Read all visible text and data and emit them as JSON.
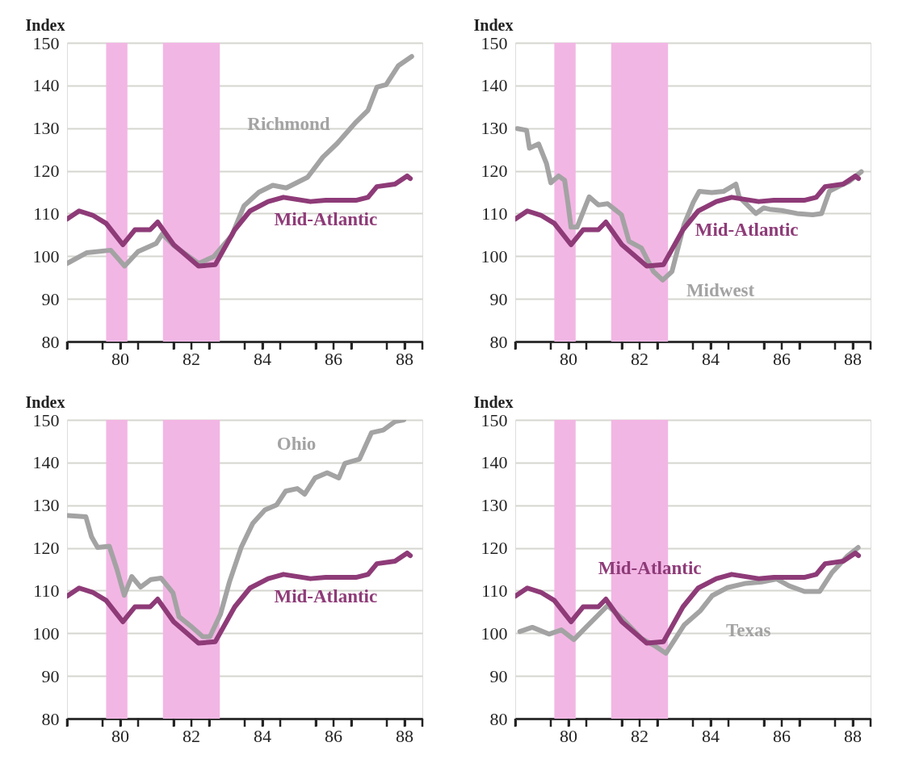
{
  "chart_data": [
    {
      "type": "line",
      "ylabel": "Index",
      "xlim": [
        78.5,
        88.5
      ],
      "ylim": [
        80,
        150
      ],
      "yticks": [
        80,
        90,
        100,
        110,
        120,
        130,
        140,
        150
      ],
      "xticks": [
        {
          "value": 78.5,
          "label": null
        },
        {
          "value": 79.5,
          "label": null
        },
        80,
        {
          "value": 80.5,
          "label": null
        },
        {
          "value": 81.5,
          "label": null
        },
        82,
        {
          "value": 82.5,
          "label": null
        },
        {
          "value": 83.5,
          "label": null
        },
        84,
        {
          "value": 84.5,
          "label": null
        },
        {
          "value": 85.5,
          "label": null
        },
        86,
        {
          "value": 86.5,
          "label": null
        },
        {
          "value": 87.5,
          "label": null
        },
        88,
        {
          "value": 88.5,
          "label": null
        }
      ],
      "grid": "y",
      "bands": [
        {
          "axis": "x",
          "from": 79.6,
          "to": 80.2,
          "color": "#f2b6e4"
        },
        {
          "axis": "x",
          "from": 81.2,
          "to": 82.8,
          "color": "#f2b6e4"
        }
      ],
      "series": [
        {
          "name": "Richmond",
          "color": "#a3a3a3",
          "x": [
            78.5,
            79.05,
            79.73,
            80.12,
            80.5,
            81.01,
            81.18,
            81.52,
            82.2,
            82.63,
            83.14,
            83.48,
            83.9,
            84.29,
            84.67,
            85.27,
            85.7,
            86.1,
            86.63,
            86.97,
            87.22,
            87.48,
            87.82,
            88.2
          ],
          "values": [
            98.3,
            100.8,
            101.4,
            97.7,
            101.1,
            103.0,
            105.2,
            102.4,
            98.3,
            99.9,
            104.9,
            111.8,
            115.0,
            116.6,
            116.0,
            118.5,
            123.2,
            126.4,
            131.4,
            134.2,
            139.6,
            140.2,
            144.6,
            146.8
          ]
        },
        {
          "name": "Mid-Atlantic",
          "color": "#8e3b78",
          "x": [
            78.5,
            78.84,
            79.22,
            79.6,
            80.07,
            80.41,
            80.84,
            81.05,
            81.5,
            82.2,
            82.67,
            83.22,
            83.65,
            84.16,
            84.59,
            85.35,
            85.78,
            86.63,
            86.97,
            87.22,
            87.73,
            88.07,
            88.16
          ],
          "values": [
            108.7,
            110.6,
            109.6,
            107.7,
            102.7,
            106.2,
            106.2,
            108.0,
            102.7,
            97.7,
            98.0,
            106.2,
            110.6,
            112.8,
            113.8,
            112.8,
            113.1,
            113.1,
            113.8,
            116.3,
            116.9,
            118.8,
            118.2
          ]
        }
      ]
    },
    {
      "type": "line",
      "ylabel": "Index",
      "xlim": [
        78.5,
        88.5
      ],
      "ylim": [
        80,
        150
      ],
      "yticks": [
        80,
        90,
        100,
        110,
        120,
        130,
        140,
        150
      ],
      "xticks": [
        {
          "value": 78.5,
          "label": null
        },
        {
          "value": 79.5,
          "label": null
        },
        80,
        {
          "value": 80.5,
          "label": null
        },
        {
          "value": 81.5,
          "label": null
        },
        82,
        {
          "value": 82.5,
          "label": null
        },
        {
          "value": 83.5,
          "label": null
        },
        84,
        {
          "value": 84.5,
          "label": null
        },
        {
          "value": 85.5,
          "label": null
        },
        86,
        {
          "value": 86.5,
          "label": null
        },
        {
          "value": 87.5,
          "label": null
        },
        88,
        {
          "value": 88.5,
          "label": null
        }
      ],
      "grid": "y",
      "bands": [
        {
          "axis": "x",
          "from": 79.6,
          "to": 80.2,
          "color": "#f2b6e4"
        },
        {
          "axis": "x",
          "from": 81.2,
          "to": 82.8,
          "color": "#f2b6e4"
        }
      ],
      "series": [
        {
          "name": "Midwest",
          "color": "#a3a3a3",
          "x": [
            78.56,
            78.82,
            78.9,
            79.16,
            79.38,
            79.5,
            79.72,
            79.89,
            79.98,
            80.07,
            80.24,
            80.58,
            80.84,
            81.1,
            81.49,
            81.7,
            82.05,
            82.39,
            82.65,
            82.91,
            83.25,
            83.51,
            83.68,
            84.03,
            84.37,
            84.71,
            84.8,
            85.27,
            85.49,
            85.66,
            86.0,
            86.43,
            86.87,
            87.12,
            87.34,
            87.64,
            87.9,
            88.24
          ],
          "values": [
            129.9,
            129.5,
            125.3,
            126.3,
            121.7,
            117.2,
            118.8,
            117.8,
            112.6,
            106.8,
            106.8,
            113.9,
            112.0,
            112.3,
            109.7,
            103.5,
            101.9,
            96.4,
            94.4,
            96.4,
            107.4,
            112.6,
            115.2,
            114.9,
            115.2,
            116.9,
            113.9,
            110.0,
            111.3,
            111.0,
            110.7,
            110.0,
            109.7,
            110.0,
            115.2,
            116.5,
            117.5,
            119.8
          ]
        },
        {
          "name": "Mid-Atlantic",
          "color": "#8e3b78",
          "x": [
            78.5,
            78.84,
            79.22,
            79.6,
            80.07,
            80.41,
            80.84,
            81.05,
            81.5,
            82.2,
            82.67,
            83.22,
            83.65,
            84.16,
            84.59,
            85.35,
            85.78,
            86.63,
            86.97,
            87.22,
            87.73,
            88.07,
            88.16
          ],
          "values": [
            108.7,
            110.6,
            109.6,
            107.7,
            102.7,
            106.2,
            106.2,
            108.0,
            102.7,
            97.7,
            98.0,
            106.2,
            110.6,
            112.8,
            113.8,
            112.8,
            113.1,
            113.1,
            113.8,
            116.3,
            116.9,
            118.8,
            118.2
          ]
        }
      ]
    },
    {
      "type": "line",
      "ylabel": "Index",
      "xlim": [
        78.5,
        88.5
      ],
      "ylim": [
        80,
        150
      ],
      "yticks": [
        80,
        90,
        100,
        110,
        120,
        130,
        140,
        150
      ],
      "xticks": [
        {
          "value": 78.5,
          "label": null
        },
        {
          "value": 79.5,
          "label": null
        },
        80,
        {
          "value": 80.5,
          "label": null
        },
        {
          "value": 81.5,
          "label": null
        },
        82,
        {
          "value": 82.5,
          "label": null
        },
        {
          "value": 83.5,
          "label": null
        },
        84,
        {
          "value": 84.5,
          "label": null
        },
        {
          "value": 85.5,
          "label": null
        },
        86,
        {
          "value": 86.5,
          "label": null
        },
        {
          "value": 87.5,
          "label": null
        },
        88,
        {
          "value": 88.5,
          "label": null
        }
      ],
      "grid": "y",
      "bands": [
        {
          "axis": "x",
          "from": 79.6,
          "to": 80.2,
          "color": "#f2b6e4"
        },
        {
          "axis": "x",
          "from": 81.2,
          "to": 82.8,
          "color": "#f2b6e4"
        }
      ],
      "series": [
        {
          "name": "Ohio",
          "color": "#a3a3a3",
          "x": [
            78.53,
            79.03,
            79.19,
            79.36,
            79.69,
            79.9,
            80.11,
            80.32,
            80.57,
            80.86,
            81.15,
            81.48,
            81.65,
            81.98,
            82.32,
            82.52,
            82.82,
            83.07,
            83.4,
            83.73,
            84.07,
            84.4,
            84.65,
            84.98,
            85.19,
            85.48,
            85.82,
            86.15,
            86.32,
            86.73,
            87.07,
            87.4,
            87.73,
            87.98
          ],
          "values": [
            127.6,
            127.3,
            122.6,
            120.1,
            120.4,
            115.1,
            108.9,
            113.3,
            110.8,
            112.6,
            112.9,
            109.5,
            103.9,
            101.7,
            99.2,
            99.2,
            104.5,
            112.0,
            120.1,
            125.8,
            128.9,
            130.1,
            133.3,
            133.9,
            132.6,
            136.4,
            137.6,
            136.4,
            139.8,
            140.8,
            147.0,
            147.6,
            149.6,
            150.0
          ]
        },
        {
          "name": "Mid-Atlantic",
          "color": "#8e3b78",
          "x": [
            78.5,
            78.84,
            79.22,
            79.6,
            80.07,
            80.41,
            80.84,
            81.05,
            81.5,
            82.2,
            82.67,
            83.22,
            83.65,
            84.16,
            84.59,
            85.35,
            85.78,
            86.63,
            86.97,
            87.22,
            87.73,
            88.07,
            88.16
          ],
          "values": [
            108.7,
            110.6,
            109.6,
            107.7,
            102.7,
            106.2,
            106.2,
            108.0,
            102.7,
            97.7,
            98.0,
            106.2,
            110.6,
            112.8,
            113.8,
            112.8,
            113.1,
            113.1,
            113.8,
            116.3,
            116.9,
            118.8,
            118.2
          ]
        }
      ]
    },
    {
      "type": "line",
      "ylabel": "Index",
      "xlim": [
        78.5,
        88.5
      ],
      "ylim": [
        80,
        150
      ],
      "yticks": [
        80,
        90,
        100,
        110,
        120,
        130,
        140,
        150
      ],
      "xticks": [
        {
          "value": 78.5,
          "label": null
        },
        {
          "value": 79.5,
          "label": null
        },
        80,
        {
          "value": 80.5,
          "label": null
        },
        {
          "value": 81.5,
          "label": null
        },
        82,
        {
          "value": 82.5,
          "label": null
        },
        {
          "value": 83.5,
          "label": null
        },
        84,
        {
          "value": 84.5,
          "label": null
        },
        {
          "value": 85.5,
          "label": null
        },
        86,
        {
          "value": 86.5,
          "label": null
        },
        {
          "value": 87.5,
          "label": null
        },
        88,
        {
          "value": 88.5,
          "label": null
        }
      ],
      "grid": "y",
      "bands": [
        {
          "axis": "x",
          "from": 79.6,
          "to": 80.2,
          "color": "#f2b6e4"
        },
        {
          "axis": "x",
          "from": 81.2,
          "to": 82.8,
          "color": "#f2b6e4"
        }
      ],
      "series": [
        {
          "name": "Texas",
          "color": "#a3a3a3",
          "x": [
            78.63,
            78.98,
            79.45,
            79.8,
            80.15,
            80.49,
            81.1,
            81.53,
            82.05,
            82.4,
            82.74,
            83.26,
            83.7,
            84.04,
            84.47,
            84.99,
            85.43,
            85.86,
            86.21,
            86.64,
            87.07,
            87.42,
            87.85,
            88.15
          ],
          "values": [
            100.4,
            101.4,
            99.8,
            100.8,
            98.5,
            101.4,
            106.5,
            103.3,
            98.8,
            97.2,
            95.3,
            102.0,
            105.2,
            108.8,
            110.7,
            111.7,
            112.0,
            112.7,
            111.1,
            109.8,
            109.8,
            114.3,
            118.1,
            120.1
          ]
        },
        {
          "name": "Mid-Atlantic",
          "color": "#8e3b78",
          "x": [
            78.5,
            78.84,
            79.22,
            79.6,
            80.07,
            80.41,
            80.84,
            81.05,
            81.5,
            82.2,
            82.67,
            83.22,
            83.65,
            84.16,
            84.59,
            85.35,
            85.78,
            86.63,
            86.97,
            87.22,
            87.73,
            88.07,
            88.16
          ],
          "values": [
            108.7,
            110.6,
            109.6,
            107.7,
            102.7,
            106.2,
            106.2,
            108.0,
            102.7,
            97.7,
            98.0,
            106.2,
            110.6,
            112.8,
            113.8,
            112.8,
            113.1,
            113.1,
            113.8,
            116.3,
            116.9,
            118.8,
            118.2
          ]
        }
      ]
    }
  ]
}
